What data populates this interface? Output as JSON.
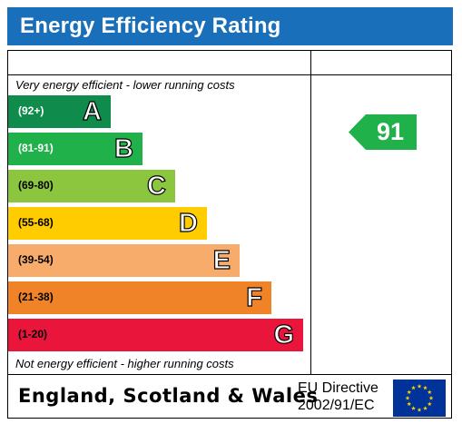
{
  "title": "Energy Efficiency Rating",
  "top_caption": "Very energy efficient - lower running costs",
  "bottom_caption": "Not energy efficient - higher running costs",
  "bands": [
    {
      "range": "(92+)",
      "letter": "A",
      "color": "#0f8c4b",
      "range_color": "#ffffff"
    },
    {
      "range": "(81-91)",
      "letter": "B",
      "color": "#21b14a",
      "range_color": "#ffffff"
    },
    {
      "range": "(69-80)",
      "letter": "C",
      "color": "#8cc63e",
      "range_color": "#000000"
    },
    {
      "range": "(55-68)",
      "letter": "D",
      "color": "#ffcc00",
      "range_color": "#000000"
    },
    {
      "range": "(39-54)",
      "letter": "E",
      "color": "#f7ac6b",
      "range_color": "#000000"
    },
    {
      "range": "(21-38)",
      "letter": "F",
      "color": "#f08327",
      "range_color": "#000000"
    },
    {
      "range": "(1-20)",
      "letter": "G",
      "color": "#e9153b",
      "range_color": "#000000"
    }
  ],
  "current_rating": {
    "value": "91",
    "band": "B",
    "color": "#21b14a"
  },
  "footer": {
    "region": "England, Scotland & Wales",
    "directive_line1": "EU Directive",
    "directive_line2": "2002/91/EC"
  },
  "colors": {
    "title_bar": "#1a6fba",
    "eu_flag_blue": "#003399",
    "eu_star": "#ffcc00"
  },
  "icons": {
    "eu_flag": "eu-flag-icon",
    "rating_arrow": "arrow-left-icon"
  }
}
